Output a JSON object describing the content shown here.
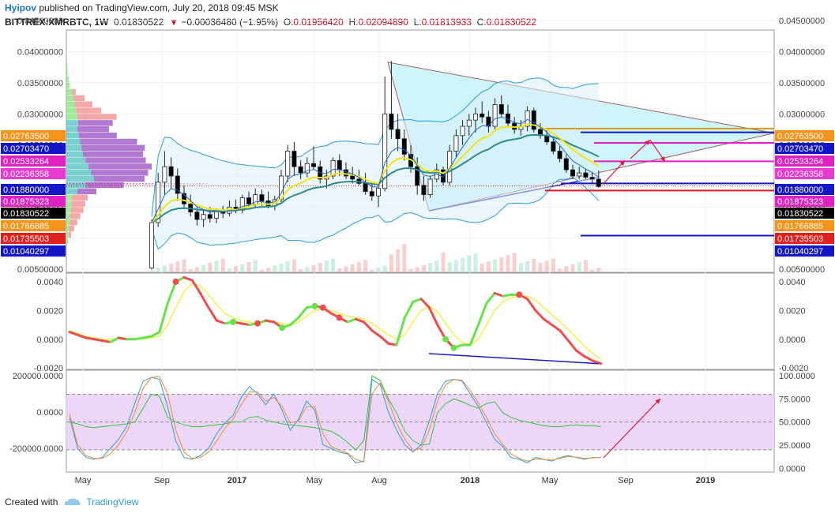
{
  "header": {
    "author": "Hyipov",
    "published_text": "published on TradingView.com, July 20, 2018 09:45 MSK",
    "symbol": "BITTREX:XMRBTC, 1W",
    "last": "0.01830522",
    "change": "−0.00036480 (−1.95%)",
    "ohlc": [
      {
        "label": "O:",
        "value": "0.01956420"
      },
      {
        "label": "H:",
        "value": "0.02094890"
      },
      {
        "label": "L:",
        "value": "0.01813933"
      },
      {
        "label": "C:",
        "value": "0.01830522"
      }
    ]
  },
  "footer": {
    "created_with": "Created with",
    "brand": "TradingView"
  },
  "colors": {
    "up": "#ffffff",
    "down": "#000000",
    "triangle_fill": "#c8f4fa",
    "bb": "#2a9de0",
    "ema_fast": "#f2e512",
    "ema_slow": "#2e8b8b",
    "macd_up": "#66e34a",
    "macd_down": "#ef4d4d",
    "signal": "#f5f04a",
    "cci": "#2e9be0",
    "stoch_k": "#f08a3a",
    "stoch_d": "#37c43b",
    "stoch_band": "#ead3f7",
    "trend_line": "#1a1fbd",
    "arrow": "#e01a3c"
  },
  "chart_data": [
    {
      "type": "candlestick",
      "title": "BITTREX:XMRBTC, 1W",
      "ylim": [
        0.0045,
        0.0435
      ],
      "y_ticks": [
        "0.00500000",
        "0.01000000",
        "0.01500000",
        "0.02000000",
        "0.02500000",
        "0.03000000",
        "0.03500000",
        "0.04000000",
        "0.04500000"
      ],
      "x_ticks": [
        "May",
        "Sep",
        "2017",
        "May",
        "Aug",
        "2018",
        "May",
        "Sep",
        "2019"
      ],
      "price_labels": [
        {
          "value": "0.02763500",
          "color": "#f7931a"
        },
        {
          "value": "0.02703470",
          "color": "#1515c8"
        },
        {
          "value": "0.02533264",
          "color": "#e020c0"
        },
        {
          "value": "0.02236358",
          "color": "#e83ad0"
        },
        {
          "value": "0.01880000",
          "color": "#1515c8"
        },
        {
          "value": "0.01875323",
          "color": "#e020c0"
        },
        {
          "value": "0.01830522",
          "color": "#000000"
        },
        {
          "value": "0.01766885",
          "color": "#f7931a"
        },
        {
          "value": "0.01735503",
          "color": "#e0201c"
        },
        {
          "value": "0.01040297",
          "color": "#1515c8"
        }
      ],
      "candles": [
        [
          0.0052,
          0.013,
          0.005,
          0.0125
        ],
        [
          0.0125,
          0.0205,
          0.0118,
          0.019
        ],
        [
          0.019,
          0.024,
          0.017,
          0.0215
        ],
        [
          0.0215,
          0.023,
          0.018,
          0.02
        ],
        [
          0.02,
          0.0212,
          0.016,
          0.0172
        ],
        [
          0.0172,
          0.0185,
          0.0148,
          0.0155
        ],
        [
          0.0155,
          0.017,
          0.0135,
          0.0142
        ],
        [
          0.0142,
          0.015,
          0.012,
          0.013
        ],
        [
          0.013,
          0.0145,
          0.0118,
          0.0138
        ],
        [
          0.0138,
          0.015,
          0.0125,
          0.0132
        ],
        [
          0.0132,
          0.0148,
          0.0124,
          0.0145
        ],
        [
          0.0145,
          0.0152,
          0.0132,
          0.014
        ],
        [
          0.014,
          0.016,
          0.0135,
          0.015
        ],
        [
          0.015,
          0.0162,
          0.014,
          0.0145
        ],
        [
          0.0145,
          0.017,
          0.014,
          0.0165
        ],
        [
          0.0165,
          0.0175,
          0.015,
          0.0155
        ],
        [
          0.0155,
          0.018,
          0.015,
          0.017
        ],
        [
          0.017,
          0.0178,
          0.0152,
          0.016
        ],
        [
          0.016,
          0.0175,
          0.0148,
          0.0152
        ],
        [
          0.0152,
          0.0168,
          0.0145,
          0.0162
        ],
        [
          0.0162,
          0.021,
          0.0158,
          0.02
        ],
        [
          0.02,
          0.025,
          0.019,
          0.024
        ],
        [
          0.024,
          0.0255,
          0.02,
          0.0215
        ],
        [
          0.0215,
          0.0225,
          0.0195,
          0.0205
        ],
        [
          0.0205,
          0.023,
          0.0198,
          0.022
        ],
        [
          0.022,
          0.0248,
          0.021,
          0.0215
        ],
        [
          0.0215,
          0.0225,
          0.0188,
          0.0195
        ],
        [
          0.0195,
          0.021,
          0.018,
          0.02
        ],
        [
          0.02,
          0.023,
          0.0195,
          0.0225
        ],
        [
          0.0225,
          0.0235,
          0.02,
          0.021
        ],
        [
          0.021,
          0.0222,
          0.0195,
          0.02
        ],
        [
          0.02,
          0.0215,
          0.0188,
          0.0195
        ],
        [
          0.0195,
          0.021,
          0.0185,
          0.0188
        ],
        [
          0.0188,
          0.0205,
          0.017,
          0.0175
        ],
        [
          0.0175,
          0.019,
          0.016,
          0.0168
        ],
        [
          0.0168,
          0.0185,
          0.015,
          0.018
        ],
        [
          0.018,
          0.036,
          0.0175,
          0.03
        ],
        [
          0.03,
          0.0385,
          0.026,
          0.0275
        ],
        [
          0.0275,
          0.03,
          0.024,
          0.026
        ],
        [
          0.026,
          0.0275,
          0.0225,
          0.0235
        ],
        [
          0.0235,
          0.025,
          0.0205,
          0.0215
        ],
        [
          0.0215,
          0.023,
          0.017,
          0.0185
        ],
        [
          0.0185,
          0.02,
          0.016,
          0.017
        ],
        [
          0.017,
          0.02,
          0.0165,
          0.0195
        ],
        [
          0.0195,
          0.022,
          0.019,
          0.021
        ],
        [
          0.021,
          0.0215,
          0.0185,
          0.019
        ],
        [
          0.019,
          0.025,
          0.0185,
          0.024
        ],
        [
          0.024,
          0.0275,
          0.023,
          0.0265
        ],
        [
          0.0265,
          0.029,
          0.025,
          0.028
        ],
        [
          0.028,
          0.03,
          0.0265,
          0.029
        ],
        [
          0.029,
          0.031,
          0.027,
          0.03
        ],
        [
          0.03,
          0.032,
          0.0285,
          0.0295
        ],
        [
          0.0295,
          0.0305,
          0.027,
          0.028
        ],
        [
          0.028,
          0.0325,
          0.0275,
          0.0315
        ],
        [
          0.0315,
          0.033,
          0.0295,
          0.03
        ],
        [
          0.03,
          0.0315,
          0.028,
          0.0285
        ],
        [
          0.0285,
          0.0295,
          0.0268,
          0.0275
        ],
        [
          0.0275,
          0.029,
          0.0265,
          0.028
        ],
        [
          0.028,
          0.0312,
          0.0272,
          0.0305
        ],
        [
          0.0305,
          0.031,
          0.027,
          0.0275
        ],
        [
          0.0275,
          0.0285,
          0.026,
          0.0265
        ],
        [
          0.0265,
          0.0275,
          0.025,
          0.0255
        ],
        [
          0.0255,
          0.0262,
          0.0235,
          0.024
        ],
        [
          0.024,
          0.0248,
          0.0222,
          0.0228
        ],
        [
          0.0228,
          0.0235,
          0.0205,
          0.021
        ],
        [
          0.021,
          0.0218,
          0.0195,
          0.02
        ],
        [
          0.02,
          0.0215,
          0.0195,
          0.0205
        ],
        [
          0.0205,
          0.0212,
          0.0195,
          0.0198
        ],
        [
          0.0198,
          0.0206,
          0.0188,
          0.0195
        ],
        [
          0.0195,
          0.0209,
          0.0181,
          0.0183
        ]
      ]
    },
    {
      "type": "line",
      "name": "MACD",
      "ylim": [
        -0.0021,
        0.0046
      ],
      "y_ticks": [
        "0.0040",
        "0.0020",
        "0.0000",
        "-0.0020"
      ],
      "series": [
        {
          "values": [
            0.0005,
            0.0003,
            0.0001,
            0.0,
            -0.0001,
            -0.0002,
            0.0001,
            0.0,
            0.0,
            0.0001,
            0.0002,
            0.0005,
            0.0025,
            0.004,
            0.0043,
            0.0041,
            0.0032,
            0.0022,
            0.0013,
            0.0011,
            0.0012,
            0.0011,
            0.001,
            0.0011,
            0.0013,
            0.0012,
            0.0008,
            0.001,
            0.0015,
            0.0022,
            0.0023,
            0.0022,
            0.0018,
            0.0015,
            0.0012,
            0.0014,
            0.0012,
            0.0006,
            0.0002,
            -0.0003,
            -0.0004,
            0.0015,
            0.0026,
            0.0028,
            0.0022,
            0.001,
            0.0,
            -0.0006,
            -0.0004,
            -0.0004,
            0.001,
            0.0025,
            0.0032,
            0.003,
            0.0031,
            0.0031,
            0.0028,
            0.002,
            0.0014,
            0.001,
            0.0006,
            -0.0001,
            -0.0008,
            -0.0012,
            -0.0015,
            -0.0017
          ]
        },
        {
          "values": [
            0.0006,
            0.0004,
            0.0002,
            0.0001,
            0.0,
            0.0,
            0.0,
            0.0,
            0.0,
            0.0,
            0.0001,
            0.0002,
            0.001,
            0.0022,
            0.0033,
            0.0039,
            0.0037,
            0.0031,
            0.0024,
            0.0018,
            0.0015,
            0.0013,
            0.0012,
            0.0011,
            0.0012,
            0.0012,
            0.0011,
            0.001,
            0.0012,
            0.0016,
            0.002,
            0.0021,
            0.002,
            0.0018,
            0.0016,
            0.0015,
            0.0014,
            0.0011,
            0.0007,
            0.0003,
            0.0,
            0.0003,
            0.0012,
            0.002,
            0.0023,
            0.0019,
            0.0011,
            0.0003,
            -0.0002,
            -0.0004,
            0.0,
            0.001,
            0.002,
            0.0026,
            0.0029,
            0.003,
            0.003,
            0.0027,
            0.0022,
            0.0017,
            0.0012,
            0.0007,
            0.0001,
            -0.0005,
            -0.001,
            -0.0014
          ]
        }
      ]
    },
    {
      "type": "line",
      "name": "CCI / Stochastic",
      "ylim_left": [
        -330000,
        230000
      ],
      "y_ticks_left": [
        "200000.0000",
        "0.0000",
        "-200000.0000"
      ],
      "ylim_right": [
        -4,
        106
      ],
      "y_ticks_right": [
        "100.0000",
        "75.0000",
        "50.0000",
        "25.0000",
        "0.0000"
      ],
      "band": [
        20,
        80
      ],
      "series": [
        {
          "values": [
            -30000,
            -200000,
            -250000,
            -260000,
            -250000,
            -200000,
            -150000,
            -80000,
            50000,
            170000,
            190000,
            180000,
            30000,
            -160000,
            -250000,
            -260000,
            -240000,
            -200000,
            -120000,
            -60000,
            -20000,
            80000,
            140000,
            100000,
            40000,
            100000,
            10000,
            -100000,
            -40000,
            60000,
            10000,
            -180000,
            -200000,
            -220000,
            -230000,
            -280000,
            -270000,
            180000,
            150000,
            0,
            -100000,
            -180000,
            -220000,
            -180000,
            -50000,
            100000,
            170000,
            180000,
            170000,
            100000,
            30000,
            -60000,
            -150000,
            -190000,
            -250000,
            -260000,
            -280000,
            -250000,
            -260000,
            -270000,
            -250000,
            -240000,
            -250000,
            -260000,
            -250000,
            -250000
          ]
        },
        {
          "values": [
            -10000,
            -180000,
            -240000,
            -255000,
            -255000,
            -230000,
            -180000,
            -110000,
            0,
            130000,
            190000,
            195000,
            100000,
            -100000,
            -220000,
            -255000,
            -250000,
            -220000,
            -160000,
            -90000,
            -40000,
            40000,
            110000,
            110000,
            60000,
            80000,
            30000,
            -60000,
            -50000,
            30000,
            30000,
            -120000,
            -190000,
            -210000,
            -225000,
            -260000,
            -275000,
            100000,
            160000,
            60000,
            -60000,
            -150000,
            -210000,
            -200000,
            -100000,
            60000,
            150000,
            180000,
            175000,
            120000,
            50000,
            -30000,
            -120000,
            -180000,
            -230000,
            -255000,
            -270000,
            -260000,
            -260000,
            -265000,
            -255000,
            -245000,
            -248000,
            -255000,
            -252000,
            -250000
          ]
        },
        {
          "values": [
            50,
            48,
            45,
            44,
            45,
            46,
            47,
            48,
            50,
            65,
            80,
            78,
            55,
            50,
            47,
            45,
            45,
            46,
            47,
            48,
            50,
            50,
            55,
            56,
            52,
            50,
            48,
            47,
            46,
            45,
            44,
            42,
            40,
            35,
            28,
            20,
            30,
            100,
            95,
            75,
            60,
            40,
            30,
            25,
            26,
            60,
            70,
            75,
            72,
            68,
            65,
            70,
            72,
            60,
            55,
            52,
            50,
            48,
            46,
            45,
            45,
            46,
            47,
            46,
            46,
            45
          ]
        }
      ]
    }
  ]
}
